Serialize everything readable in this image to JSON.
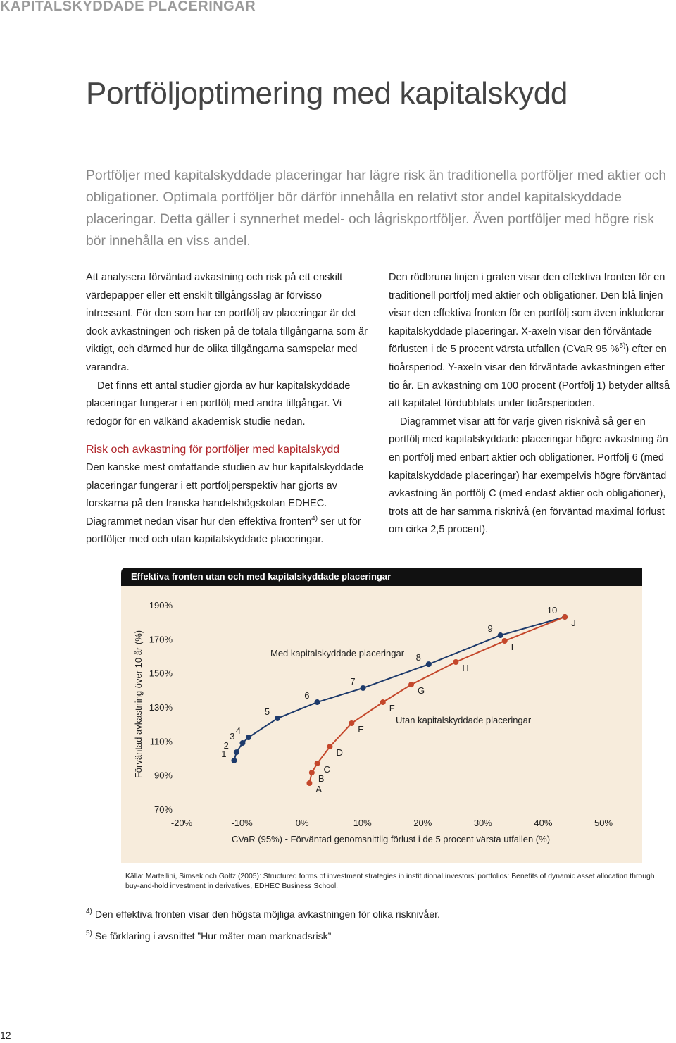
{
  "header": {
    "section": "KAPITALSKYDDADE PLACERINGAR",
    "title": "Portföljoptimering med kapitalskydd",
    "lead": "Portföljer med kapitalskyddade placeringar har lägre risk än traditionella portföljer med aktier och obligationer. Optimala portföljer bör därför innehålla en relativt stor andel kapitalskyddade placeringar. Detta gäller i synnerhet medel- och lågriskportföljer. Även portföljer med högre risk bör innehålla en viss andel."
  },
  "left_column": {
    "paragraph_1": "Att analysera förväntad avkastning och risk på ett enskilt värdepapper eller ett enskilt tillgångsslag är förvisso intressant. För den som har en portfölj av placeringar är det dock avkastningen och risken på de totala tillgångarna som är viktigt, och därmed hur de olika tillgångarna samspelar med varandra.",
    "paragraph_2": "Det finns ett antal studier gjorda av hur kapitalskyddade placeringar fungerar i en portfölj med andra tillgångar. Vi redogör för en välkänd akademisk studie nedan.",
    "subheading": "Risk och avkastning för portföljer med kapitalskydd",
    "paragraph_3": [
      "Den kanske mest omfattande studien av hur kapitalskyddade placeringar fungerar i ett portföljperspektiv har gjorts av forskarna på den franska handelshögskolan EDHEC. Diagrammet nedan visar hur den effektiva fronten",
      "4)",
      " ser ut för portföljer med och utan kapitalskyddade placeringar."
    ]
  },
  "right_column": {
    "paragraph_1": [
      "Den rödbruna linjen i grafen visar den effektiva fronten för en traditionell portfölj med aktier och obligationer. Den blå linjen visar den effektiva fronten för en portfölj som även inkluderar kapitalskyddade placeringar. X-axeln visar den förväntade förlusten i de 5 procent värsta utfallen (CVaR 95 %",
      "5)",
      ") efter en tioårsperiod. Y-axeln visar den förväntade avkastningen efter tio år. En avkastning om 100 procent (Portfölj 1) betyder alltså att kapitalet fördubblats under tioårsperioden."
    ],
    "paragraph_2": "Diagrammet visar att för varje given risknivå så ger en portfölj med kapitalskyddade placeringar högre avkastning än en portfölj med enbart aktier och obligationer. Portfölj 6 (med kapitalskyddade placeringar) har exempelvis högre förväntad avkastning än portfölj C (med endast aktier och obligationer), trots att de har samma risknivå (en förväntad maximal förlust om cirka 2,5 procent)."
  },
  "chart_data": {
    "type": "line",
    "title": "Effektiva fronten utan och med kapitalskyddade placeringar",
    "xlabel": "CVaR (95%) - Förväntad genomsnittlig förlust i de 5 procent värsta utfallen (%)",
    "ylabel": "Förväntad avkastning över 10 år (%)",
    "xlim": [
      -20,
      50
    ],
    "ylim": [
      70,
      190
    ],
    "xticks": [
      {
        "value": -20,
        "label": "-20%"
      },
      {
        "value": -10,
        "label": "-10%"
      },
      {
        "value": 0,
        "label": "0%"
      },
      {
        "value": 10,
        "label": "10%"
      },
      {
        "value": 20,
        "label": "20%"
      },
      {
        "value": 30,
        "label": "30%"
      },
      {
        "value": 40,
        "label": "40%"
      },
      {
        "value": 50,
        "label": "50%"
      }
    ],
    "yticks": [
      {
        "value": 70,
        "label": "70%"
      },
      {
        "value": 90,
        "label": "90%"
      },
      {
        "value": 110,
        "label": "110%"
      },
      {
        "value": 130,
        "label": "130%"
      },
      {
        "value": 150,
        "label": "150%"
      },
      {
        "value": 170,
        "label": "170%"
      },
      {
        "value": 190,
        "label": "190%"
      }
    ],
    "series": [
      {
        "name": "Med kapitalskyddade placeringar",
        "color": "#1d3a6b",
        "point_labels": [
          "1",
          "2",
          "3",
          "4",
          "5",
          "6",
          "7",
          "8",
          "9",
          "10"
        ],
        "x": [
          -11.3,
          -10.9,
          -9.9,
          -8.9,
          -4.1,
          2.5,
          10.1,
          21.0,
          32.9,
          43.6
        ],
        "values": [
          99.0,
          103.9,
          109.3,
          112.6,
          123.8,
          133.3,
          141.6,
          155.6,
          172.6,
          183.4
        ]
      },
      {
        "name": "Utan kapitalskyddade placeringar",
        "color": "#c4472b",
        "point_labels": [
          "A",
          "B",
          "C",
          "D",
          "E",
          "F",
          "G",
          "H",
          "I",
          "J"
        ],
        "x": [
          1.2,
          1.6,
          2.5,
          4.6,
          8.2,
          13.4,
          18.1,
          25.5,
          33.6,
          43.6
        ],
        "values": [
          85.7,
          91.9,
          97.3,
          107.2,
          120.9,
          133.3,
          143.6,
          156.9,
          169.3,
          183.4
        ]
      }
    ]
  },
  "source": "Källa: Martellini, Simsek och Goltz (2005): Structured forms of investment strategies in institutional investors’ portfolios: Benefits of dynamic asset allocation through buy-and-hold investment in derivatives, EDHEC Business School.",
  "footnotes": [
    {
      "mark": "4)",
      "text": "Den effektiva fronten visar den högsta möjliga avkastningen för olika risknivåer."
    },
    {
      "mark": "5)",
      "text": "Se förklaring i avsnittet ”Hur mäter man marknadsrisk”"
    }
  ],
  "page_number": "12"
}
